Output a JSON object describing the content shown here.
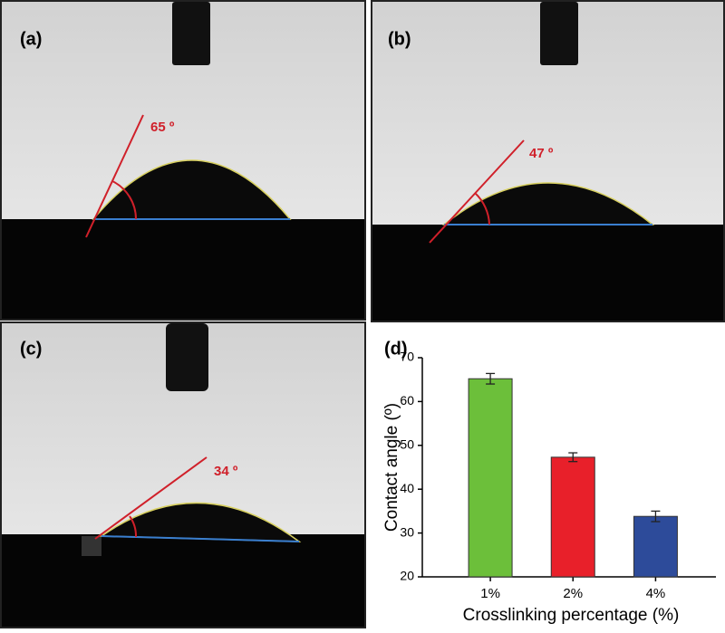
{
  "panels": [
    {
      "label": "(a)",
      "angle": "65 º"
    },
    {
      "label": "(b)",
      "angle": "47 º"
    },
    {
      "label": "(c)",
      "angle": "34 º"
    }
  ],
  "chart_data": {
    "type": "bar",
    "label": "(d)",
    "x_label": "Crosslinking percentage (%)",
    "y_label": "Contact angle (º)",
    "categories": [
      "1%",
      "2%",
      "4%"
    ],
    "values": [
      65.2,
      47.3,
      33.8
    ],
    "errors": [
      1.2,
      1.0,
      1.2
    ],
    "colors": [
      "#6cbf3a",
      "#e8202a",
      "#2d4b9a"
    ],
    "ylim": [
      20,
      70
    ],
    "yticks": [
      20,
      30,
      40,
      50,
      60,
      70
    ],
    "grid": false
  }
}
